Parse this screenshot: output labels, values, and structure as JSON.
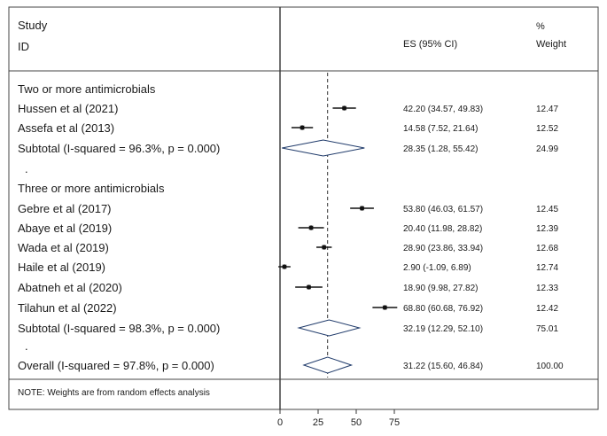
{
  "chart_data": {
    "type": "forest",
    "header": {
      "study_line1": "Study",
      "study_line2": "ID",
      "es_label": "ES (95% CI)",
      "weight_line1": "%",
      "weight_line2": "Weight"
    },
    "rows": [
      {
        "kind": "group",
        "label": "Two or more antimicrobials"
      },
      {
        "kind": "study",
        "label": "Hussen et al (2021)",
        "es": 42.2,
        "lo": 34.57,
        "hi": 49.83,
        "ci_text": "42.20 (34.57, 49.83)",
        "weight": "12.47"
      },
      {
        "kind": "study",
        "label": "Assefa et al (2013)",
        "es": 14.58,
        "lo": 7.52,
        "hi": 21.64,
        "ci_text": "14.58 (7.52, 21.64)",
        "weight": "12.52"
      },
      {
        "kind": "subtotal",
        "label": "Subtotal  (I-squared = 96.3%, p = 0.000)",
        "es": 28.35,
        "lo": 1.28,
        "hi": 55.42,
        "ci_text": "28.35 (1.28, 55.42)",
        "weight": "24.99"
      },
      {
        "kind": "spacer",
        "label": "."
      },
      {
        "kind": "group",
        "label": "Three or more antimicrobials"
      },
      {
        "kind": "study",
        "label": "Gebre et al (2017)",
        "es": 53.8,
        "lo": 46.03,
        "hi": 61.57,
        "ci_text": "53.80 (46.03, 61.57)",
        "weight": "12.45"
      },
      {
        "kind": "study",
        "label": "Abaye et al (2019)",
        "es": 20.4,
        "lo": 11.98,
        "hi": 28.82,
        "ci_text": "20.40 (11.98, 28.82)",
        "weight": "12.39"
      },
      {
        "kind": "study",
        "label": "Wada et al (2019)",
        "es": 28.9,
        "lo": 23.86,
        "hi": 33.94,
        "ci_text": "28.90 (23.86, 33.94)",
        "weight": "12.68"
      },
      {
        "kind": "study",
        "label": "Haile et al (2019)",
        "es": 2.9,
        "lo": -1.09,
        "hi": 6.89,
        "ci_text": "2.90 (-1.09, 6.89)",
        "weight": "12.74"
      },
      {
        "kind": "study",
        "label": "Abatneh et al (2020)",
        "es": 18.9,
        "lo": 9.98,
        "hi": 27.82,
        "ci_text": "18.90 (9.98, 27.82)",
        "weight": "12.33"
      },
      {
        "kind": "study",
        "label": "Tilahun et al (2022)",
        "es": 68.8,
        "lo": 60.68,
        "hi": 76.92,
        "ci_text": "68.80 (60.68, 76.92)",
        "weight": "12.42"
      },
      {
        "kind": "subtotal",
        "label": "Subtotal  (I-squared = 98.3%, p = 0.000)",
        "es": 32.19,
        "lo": 12.29,
        "hi": 52.1,
        "ci_text": "32.19 (12.29, 52.10)",
        "weight": "75.01"
      },
      {
        "kind": "spacer",
        "label": "."
      },
      {
        "kind": "overall",
        "label": "Overall  (I-squared = 97.8%, p = 0.000)",
        "es": 31.22,
        "lo": 15.6,
        "hi": 46.84,
        "ci_text": "31.22 (15.60, 46.84)",
        "weight": "100.00"
      }
    ],
    "note": "NOTE: Weights are from random effects analysis",
    "x_ticks": [
      0,
      25,
      50,
      75
    ],
    "x_tick_labels": [
      "0",
      "25",
      "50",
      "75"
    ],
    "null_line": 0,
    "pooled_line": 31.22
  }
}
